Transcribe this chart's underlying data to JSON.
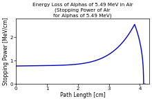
{
  "title_line1": "Energy Loss of Alphas of 5.49 MeV in Air",
  "title_line2": "(Stopping Power of Air",
  "title_line3": "for Alphas of 5.49 MeV)",
  "xlabel": "Path Length [cm]",
  "ylabel": "Stopping Power [MeV/cm]",
  "xlim": [
    0,
    4.3
  ],
  "ylim": [
    0,
    2.8
  ],
  "xticks": [
    0,
    1,
    2,
    3,
    4
  ],
  "yticks": [
    0,
    1,
    2
  ],
  "line_color": "#0000bb",
  "line_width": 1.0,
  "background_color": "#ffffff",
  "title_fontsize": 5.2,
  "label_fontsize": 5.5,
  "tick_fontsize": 5.0,
  "bragg_peak_x": 3.83,
  "bragg_peak_y": 2.55,
  "initial_y": 0.77,
  "range_cm": 4.12
}
